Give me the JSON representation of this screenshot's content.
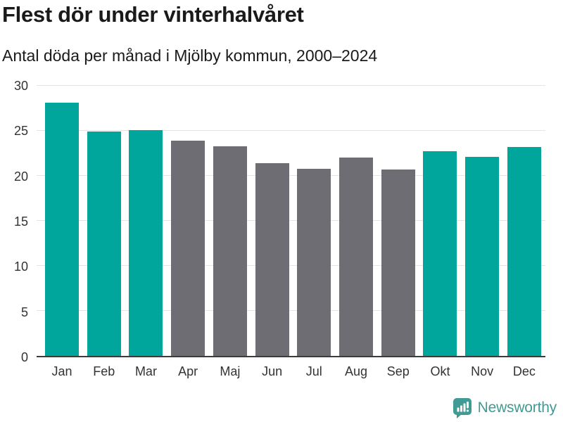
{
  "chart_data": {
    "type": "bar",
    "title": "Flest dör under vinterhalvåret",
    "subtitle": "Antal döda per månad i Mjölby kommun, 2000–2024",
    "categories": [
      "Jan",
      "Feb",
      "Mar",
      "Apr",
      "Maj",
      "Jun",
      "Jul",
      "Aug",
      "Sep",
      "Okt",
      "Nov",
      "Dec"
    ],
    "values": [
      28.1,
      24.9,
      25.1,
      23.9,
      23.3,
      21.4,
      20.8,
      22.0,
      20.7,
      22.7,
      22.1,
      23.2
    ],
    "xlabel": "",
    "ylabel": "",
    "ylim": [
      0,
      30
    ],
    "yticks": [
      0,
      5,
      10,
      15,
      20,
      25,
      30
    ],
    "grid": true,
    "legend": "none",
    "colors": {
      "highlight": "#00a69c",
      "muted": "#6e6d74"
    },
    "highlighted_categories": [
      "Jan",
      "Feb",
      "Mar",
      "Okt",
      "Nov",
      "Dec"
    ]
  },
  "footer": {
    "brand": "Newsworthy",
    "brand_color": "#3f9b93"
  }
}
